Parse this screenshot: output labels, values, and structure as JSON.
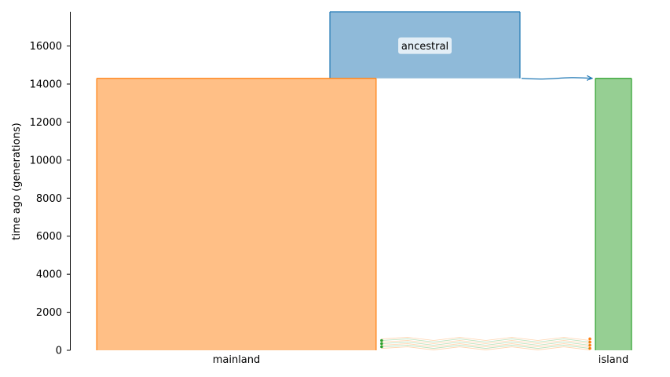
{
  "chart_data": {
    "type": "demography-diagram",
    "ylabel": "time ago (generations)",
    "ylim": [
      0,
      17800
    ],
    "yticks": [
      0,
      2000,
      4000,
      6000,
      8000,
      10000,
      12000,
      14000,
      16000
    ],
    "populations": [
      {
        "name": "ancestral",
        "label_inside": "ancestral",
        "start_time": 17800,
        "end_time": 14300,
        "relative_size": 1.0,
        "fill": "#8fbad9",
        "stroke": "#1f77b4"
      },
      {
        "name": "mainland",
        "axis_label": "mainland",
        "start_time": 14300,
        "end_time": 0,
        "relative_size": 1.47,
        "fill": "#ffbf86",
        "stroke": "#ff7f0e"
      },
      {
        "name": "island",
        "axis_label": "island",
        "start_time": 14300,
        "end_time": 0,
        "relative_size": 0.19,
        "fill": "#96cf93",
        "stroke": "#2ca02c"
      }
    ],
    "ancestry_arrow": {
      "from": "ancestral",
      "to": "island",
      "time": 14300,
      "color": "#1f77b4"
    },
    "migrations": {
      "between": [
        "mainland",
        "island"
      ],
      "time_min": 100,
      "time_max": 600,
      "count": 7,
      "colors": {
        "mainland": "#ff7f0e",
        "island": "#2ca02c"
      }
    }
  }
}
